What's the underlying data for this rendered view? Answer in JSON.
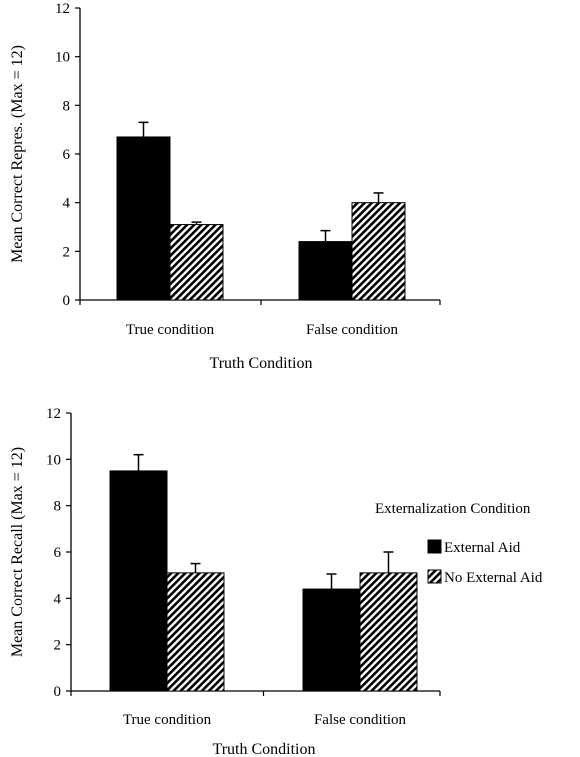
{
  "chart_data": [
    {
      "type": "bar",
      "title": "",
      "xlabel": "Truth Condition",
      "ylabel": "Mean Correct Repres. (Max = 12)",
      "categories": [
        "True condition",
        "False condition"
      ],
      "ylim": [
        0,
        12
      ],
      "yticks": [
        "0",
        "2",
        "4",
        "6",
        "8",
        "10",
        "12"
      ],
      "grid": false,
      "series": [
        {
          "name": "External Aid",
          "pattern": "solid",
          "color": "#000000",
          "values": [
            6.7,
            2.4
          ],
          "errors": [
            0.6,
            0.45
          ]
        },
        {
          "name": "No External Aid",
          "pattern": "hatched",
          "color": "#000000",
          "values": [
            3.1,
            4.0
          ],
          "errors": [
            0.1,
            0.4
          ]
        }
      ]
    },
    {
      "type": "bar",
      "title": "",
      "xlabel": "Truth Condition",
      "ylabel": "Mean Correct Recall (Max = 12)",
      "categories": [
        "True condition",
        "False condition"
      ],
      "ylim": [
        0,
        12
      ],
      "yticks": [
        "0",
        "2",
        "4",
        "6",
        "8",
        "10",
        "12"
      ],
      "grid": false,
      "legend": {
        "title": "Externalization Condition",
        "placement": "right",
        "entries": [
          "External Aid",
          "No External Aid"
        ]
      },
      "series": [
        {
          "name": "External Aid",
          "pattern": "solid",
          "color": "#000000",
          "values": [
            9.5,
            4.4
          ],
          "errors": [
            0.7,
            0.65
          ]
        },
        {
          "name": "No External Aid",
          "pattern": "hatched",
          "color": "#000000",
          "values": [
            5.1,
            5.1
          ],
          "errors": [
            0.4,
            0.9
          ]
        }
      ]
    }
  ]
}
